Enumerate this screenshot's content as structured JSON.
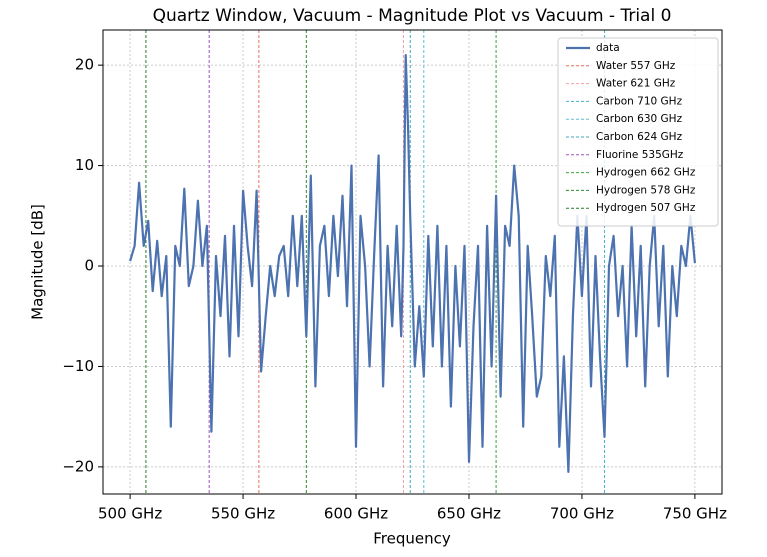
{
  "chart_data": {
    "type": "line",
    "title": "Quartz Window, Vacuum - Magnitude Plot vs Vacuum - Trial 0",
    "x_label": "Frequency",
    "y_label": "Magnitude [dB]",
    "x": [
      500,
      502,
      504,
      506,
      508,
      510,
      512,
      514,
      516,
      518,
      520,
      522,
      524,
      526,
      528,
      530,
      532,
      534,
      536,
      538,
      540,
      542,
      544,
      546,
      548,
      550,
      552,
      554,
      556,
      558,
      560,
      562,
      564,
      566,
      568,
      570,
      572,
      574,
      576,
      578,
      580,
      582,
      584,
      586,
      588,
      590,
      592,
      594,
      596,
      598,
      600,
      602,
      604,
      606,
      608,
      610,
      612,
      614,
      616,
      618,
      620,
      621,
      622,
      623,
      624,
      626,
      628,
      630,
      632,
      634,
      636,
      638,
      640,
      642,
      644,
      646,
      648,
      650,
      652,
      654,
      656,
      658,
      660,
      662,
      664,
      666,
      668,
      670,
      672,
      674,
      676,
      678,
      680,
      682,
      684,
      686,
      688,
      690,
      692,
      694,
      696,
      698,
      700,
      702,
      704,
      706,
      708,
      710,
      712,
      714,
      716,
      718,
      720,
      722,
      724,
      726,
      728,
      730,
      732,
      734,
      736,
      738,
      740,
      742,
      744,
      746,
      748,
      750
    ],
    "series": [
      {
        "name": "data",
        "color": "#4c72b0",
        "values": [
          0.5,
          2,
          8.3,
          2,
          4.5,
          -2.5,
          2.5,
          -3,
          1,
          -16,
          2,
          0,
          7.7,
          -2,
          0,
          6.5,
          0,
          4,
          -16.5,
          1,
          -5,
          3,
          -9,
          4,
          -7,
          7.5,
          2,
          -2,
          7.5,
          -10.5,
          -5,
          0,
          -3,
          1,
          2,
          -3,
          5,
          -2,
          5,
          -7,
          9,
          -12,
          2,
          4,
          -3,
          5,
          -1,
          7,
          -4,
          10,
          -18,
          5,
          0,
          -10,
          1,
          11,
          -12,
          2,
          -6,
          4,
          -7,
          2,
          21,
          14,
          5,
          -10,
          -4,
          -11,
          3,
          -8,
          4,
          -10,
          2,
          -14,
          0,
          -8,
          2,
          -19.5,
          -6,
          2,
          -18,
          4,
          -10,
          7,
          -13,
          4,
          2,
          10,
          5,
          -16,
          2,
          -5,
          -13,
          -11,
          1,
          -3,
          3,
          -18,
          -9,
          -20.5,
          -5,
          5,
          -3,
          5,
          -12,
          1,
          -9,
          -17,
          0,
          3,
          -5,
          0,
          -10,
          4,
          -7,
          2,
          -12,
          0,
          5,
          -6,
          2,
          -11,
          0,
          -5,
          2,
          0,
          5,
          0.3
        ]
      }
    ],
    "vlines": [
      {
        "name": "Water 557 GHz",
        "x": 557,
        "color": "#e8705f"
      },
      {
        "name": "Water 621 GHz",
        "x": 621,
        "color": "#f0a0a8"
      },
      {
        "name": "Carbon 710 GHz",
        "x": 710,
        "color": "#3fb6c8"
      },
      {
        "name": "Carbon 630 GHz",
        "x": 630,
        "color": "#5cc0d0"
      },
      {
        "name": "Carbon 624 GHz",
        "x": 624,
        "color": "#3fa8b8"
      },
      {
        "name": "Fluorine 535GHz",
        "x": 535,
        "color": "#a050c0"
      },
      {
        "name": "Hydrogen 662 GHz",
        "x": 662,
        "color": "#40a040"
      },
      {
        "name": "Hydrogen 578 GHz",
        "x": 578,
        "color": "#308a30"
      },
      {
        "name": "Hydrogen 507 GHz",
        "x": 507,
        "color": "#2a7a2a"
      }
    ],
    "xlim": [
      488,
      762
    ],
    "ylim": [
      -22.7,
      23.5
    ],
    "xticks": [
      {
        "value": 500,
        "label": "500 GHz"
      },
      {
        "value": 550,
        "label": "550 GHz"
      },
      {
        "value": 600,
        "label": "600 GHz"
      },
      {
        "value": 650,
        "label": "650 GHz"
      },
      {
        "value": 700,
        "label": "700 GHz"
      },
      {
        "value": 750,
        "label": "750 GHz"
      }
    ],
    "yticks": [
      {
        "value": -20,
        "label": "−20"
      },
      {
        "value": -10,
        "label": "−10"
      },
      0,
      10,
      20
    ],
    "grid": true,
    "legend": "upper right"
  }
}
